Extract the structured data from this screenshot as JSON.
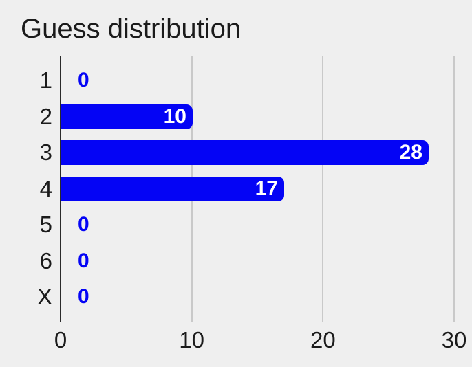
{
  "chart_data": {
    "type": "bar",
    "orientation": "horizontal",
    "title": "Guess distribution",
    "categories": [
      "1",
      "2",
      "3",
      "4",
      "5",
      "6",
      "X"
    ],
    "values": [
      0,
      10,
      28,
      17,
      0,
      0,
      0
    ],
    "xlabel": "",
    "ylabel": "",
    "x_tick_labels": [
      "0",
      "10",
      "20",
      "30"
    ],
    "x_tick_values": [
      0,
      10,
      20,
      30
    ],
    "xlim": [
      0,
      30
    ],
    "grid": true,
    "legend": false,
    "bar_color": "#0404f5",
    "value_label_color": "#ffffff",
    "zero_label_color": "#0404f5",
    "axis_line_color": "#2a2a2a",
    "gridline_color": "#c9c9c9",
    "background_color": "#efefef",
    "text_color": "#1b1b1b"
  }
}
